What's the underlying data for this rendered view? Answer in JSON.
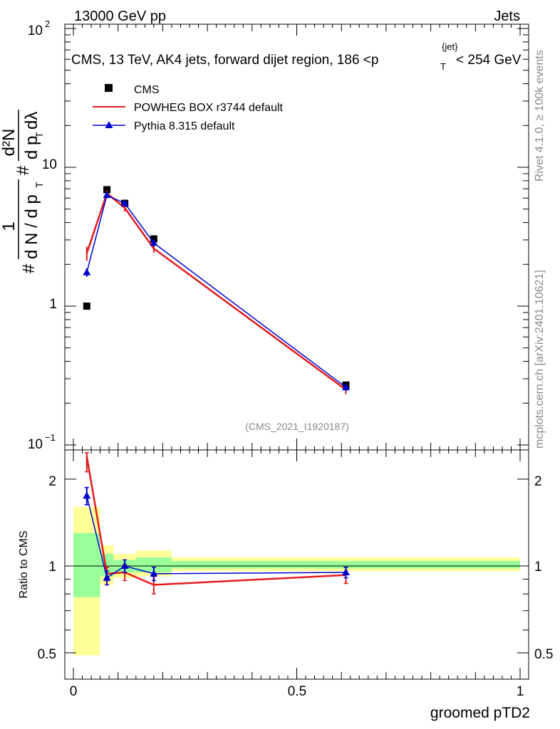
{
  "header": {
    "left": "13000 GeV pp",
    "right": "Jets"
  },
  "side_text": {
    "top": "Rivet 4.1.0, ≥ 100k events",
    "bottom": "mcplots.cern.ch [arXiv:2401.10621]"
  },
  "chart_data": [
    {
      "type": "line",
      "title": "CMS, 13 TeV, AK4 jets, forward dijet region, 186 <p",
      "title_sup": "{jet}",
      "title_sub": "T",
      "title_tail": "< 254 GeV",
      "ylabel_left": "#",
      "ylabel_frac_num": "1",
      "ylabel_frac_den": "d N / d p",
      "ylabel_den_sub": "T",
      "ylabel_mid": "#",
      "ylabel_frac2_num": "d²N",
      "ylabel_frac2_den": "d p",
      "ylabel_frac2_den_sub": "T",
      "ylabel_frac2_den_tail": "dλ",
      "yscale": "log",
      "ylim": [
        0.1,
        100
      ],
      "xlim": [
        -0.02,
        1.0
      ],
      "yticks": [
        {
          "value": 0.1,
          "base": "10",
          "exp": "−1"
        },
        {
          "value": 1,
          "label": "1"
        },
        {
          "value": 10,
          "label": "10"
        },
        {
          "value": 100,
          "base": "10",
          "exp": "2"
        }
      ],
      "watermark": "(CMS_2021_I1920187)",
      "legend_position": "top-left",
      "series": [
        {
          "name": "CMS",
          "color": "#000000",
          "marker": "square",
          "x": [
            0.03,
            0.075,
            0.115,
            0.18,
            0.61
          ],
          "y": [
            1.0,
            6.9,
            5.5,
            3.05,
            0.27
          ]
        },
        {
          "name": "POWHEG BOX r3744 default",
          "color": "#e41a1c",
          "marker": "none",
          "x": [
            0.03,
            0.075,
            0.115,
            0.18,
            0.61
          ],
          "y": [
            2.4,
            6.5,
            5.1,
            2.6,
            0.25
          ],
          "err": [
            0.28,
            0.35,
            0.3,
            0.18,
            0.018
          ]
        },
        {
          "name": "Pythia 8.315 default",
          "color": "#0000cc",
          "marker": "triangle",
          "x": [
            0.03,
            0.075,
            0.115,
            0.18,
            0.61
          ],
          "y": [
            1.75,
            6.3,
            5.5,
            2.85,
            0.26
          ],
          "err": [
            0.12,
            0.3,
            0.28,
            0.15,
            0.015
          ]
        }
      ]
    },
    {
      "type": "line",
      "ylabel": "Ratio to CMS",
      "xlabel": "groomed pTD2",
      "yscale": "log",
      "ylim": [
        0.4,
        2.45
      ],
      "xlim": [
        -0.02,
        1.0
      ],
      "yticks": [
        {
          "value": 0.5,
          "label": "0.5"
        },
        {
          "value": 1,
          "label": "1"
        },
        {
          "value": 2,
          "label": "2"
        }
      ],
      "xticks": [
        {
          "value": 0,
          "label": "0"
        },
        {
          "value": 0.5,
          "label": "0.5"
        },
        {
          "value": 1,
          "label": "1"
        }
      ],
      "bands": [
        {
          "x0": 0.0,
          "x1": 0.06,
          "yellow": [
            0.49,
            1.6
          ],
          "green": [
            0.78,
            1.3
          ]
        },
        {
          "x0": 0.06,
          "x1": 0.09,
          "yellow": [
            0.86,
            1.18
          ],
          "green": [
            0.92,
            1.1
          ]
        },
        {
          "x0": 0.09,
          "x1": 0.14,
          "yellow": [
            0.91,
            1.1
          ],
          "green": [
            0.95,
            1.05
          ]
        },
        {
          "x0": 0.14,
          "x1": 0.22,
          "yellow": [
            0.92,
            1.13
          ],
          "green": [
            0.95,
            1.07
          ]
        },
        {
          "x0": 0.22,
          "x1": 1.0,
          "yellow": [
            0.96,
            1.07
          ],
          "green": [
            0.98,
            1.04
          ]
        }
      ],
      "series": [
        {
          "name": "POWHEG BOX r3744 default",
          "color": "#e41a1c",
          "marker": "none",
          "x": [
            0.03,
            0.075,
            0.115,
            0.18,
            0.61
          ],
          "y": [
            2.4,
            0.94,
            0.95,
            0.86,
            0.93
          ],
          "err": [
            0.28,
            0.05,
            0.06,
            0.06,
            0.06
          ]
        },
        {
          "name": "Pythia 8.315 default",
          "color": "#0000cc",
          "marker": "triangle",
          "x": [
            0.03,
            0.075,
            0.115,
            0.18,
            0.61
          ],
          "y": [
            1.75,
            0.91,
            1.0,
            0.94,
            0.95
          ],
          "err": [
            0.12,
            0.05,
            0.05,
            0.05,
            0.04
          ]
        }
      ]
    }
  ]
}
